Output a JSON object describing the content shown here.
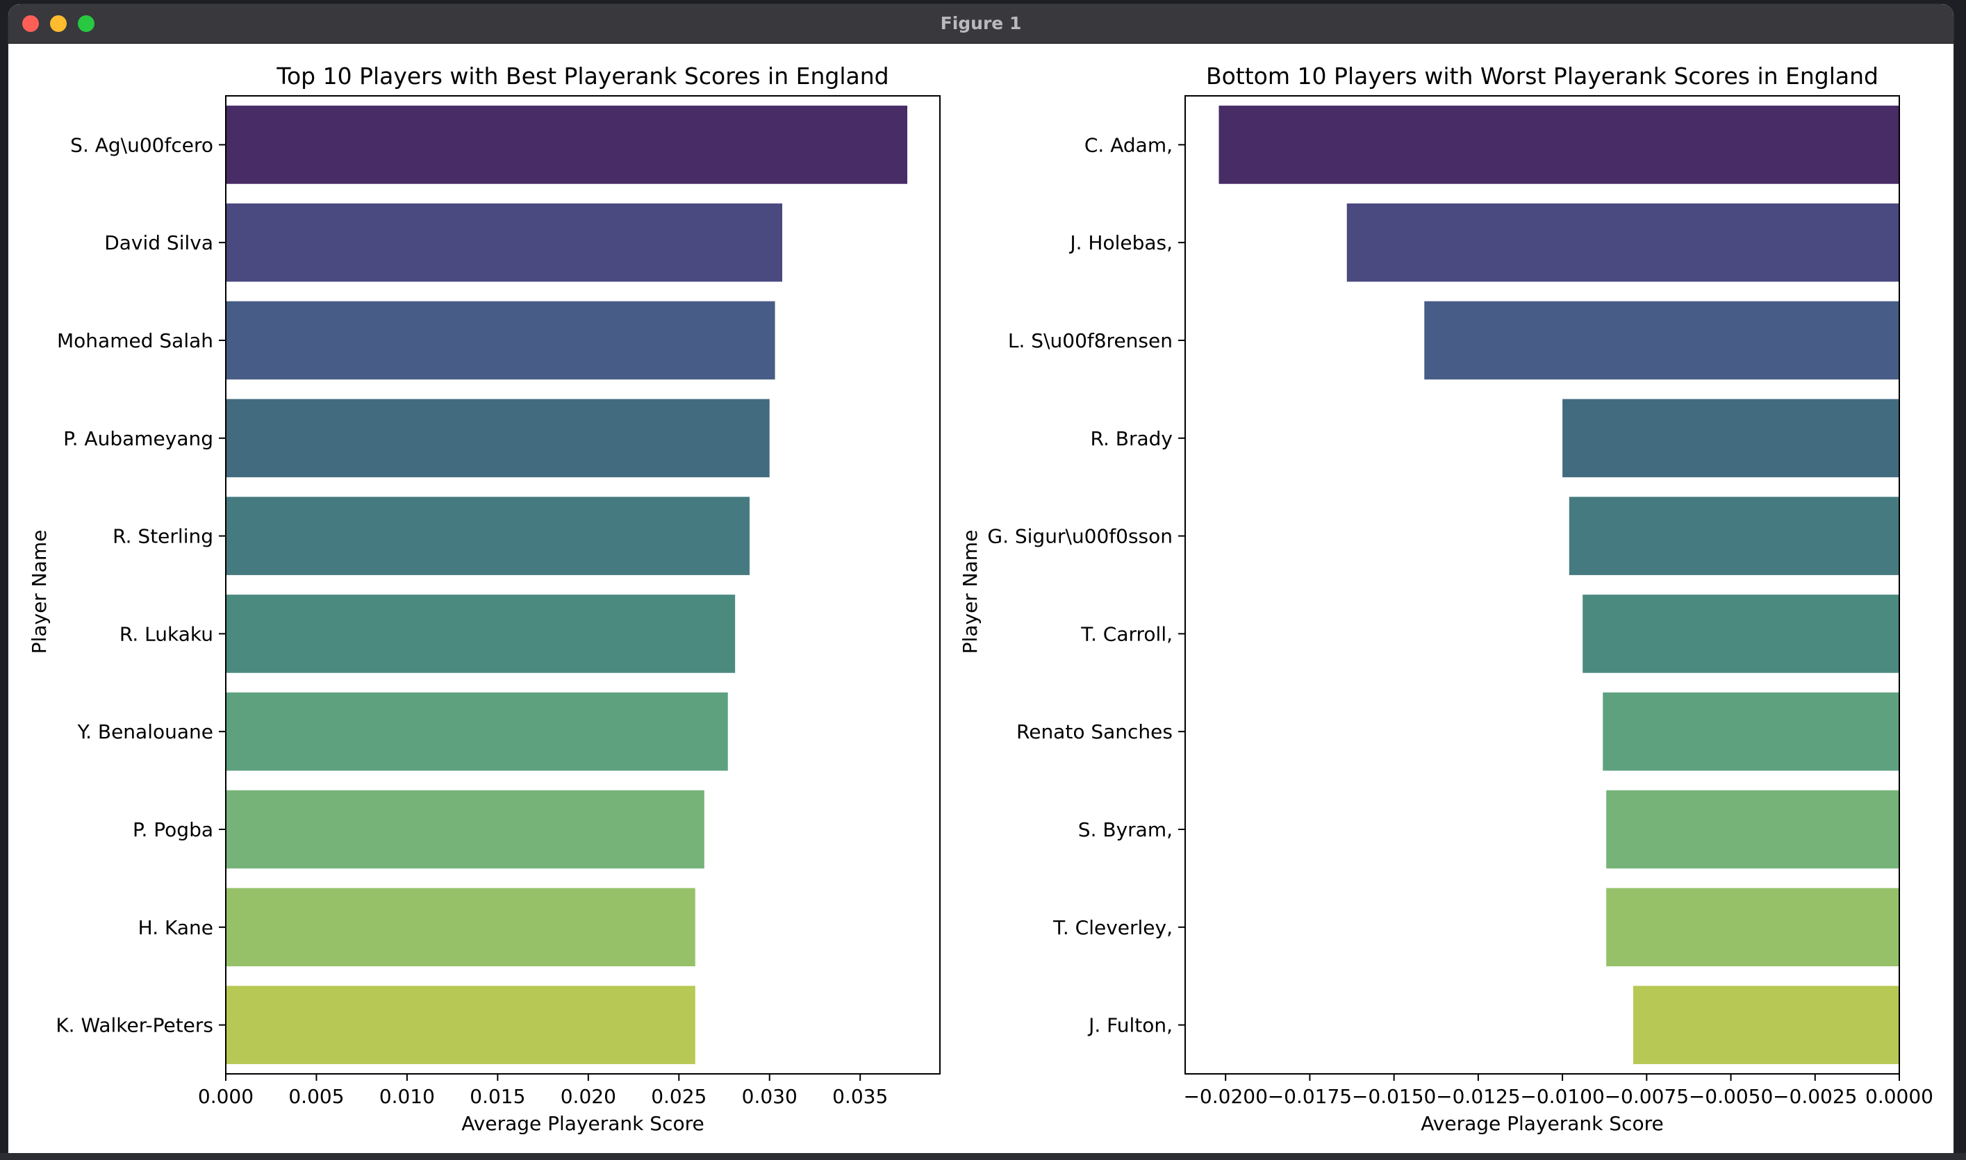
{
  "window": {
    "title": "Figure 1"
  },
  "chart_data": [
    {
      "type": "bar",
      "orientation": "horizontal",
      "title": "Top 10 Players with Best Playerank Scores in England",
      "xlabel": "Average Playerank Score",
      "ylabel": "Player Name",
      "categories": [
        "S. Ag\\u00fcero",
        "David Silva",
        "Mohamed Salah",
        "P. Aubameyang",
        "R. Sterling",
        "R. Lukaku",
        "Y. Benalouane",
        "P. Pogba",
        "H. Kane",
        "K. Walker-Peters"
      ],
      "values": [
        0.0376,
        0.0307,
        0.0303,
        0.03,
        0.0289,
        0.0281,
        0.0277,
        0.0264,
        0.0259,
        0.0259
      ],
      "xlim": [
        0,
        0.0394
      ],
      "xticks": [
        0,
        0.005,
        0.01,
        0.015,
        0.02,
        0.025,
        0.03,
        0.035
      ],
      "xtick_labels": [
        "0.000",
        "0.005",
        "0.010",
        "0.015",
        "0.020",
        "0.025",
        "0.030",
        "0.035"
      ],
      "colors": [
        "#472c66",
        "#4a4980",
        "#475c86",
        "#436b80",
        "#457b80",
        "#4b8a7f",
        "#5da17f",
        "#76b378",
        "#96c169",
        "#b8c854"
      ],
      "grid": false,
      "legend": "none"
    },
    {
      "type": "bar",
      "orientation": "horizontal",
      "title": "Bottom 10 Players with Worst Playerank Scores in England",
      "xlabel": "Average Playerank Score",
      "ylabel": "Player Name",
      "categories": [
        "C. Adam,",
        "J. Holebas,",
        "L. S\\u00f8rensen",
        "R. Brady",
        "G. Sigur\\u00f0sson",
        "T. Carroll,",
        "Renato Sanches",
        "S. Byram,",
        "T. Cleverley,",
        "J. Fulton,"
      ],
      "values": [
        -0.0202,
        -0.0164,
        -0.0141,
        -0.01,
        -0.0098,
        -0.0094,
        -0.0088,
        -0.0087,
        -0.0087,
        -0.0079
      ],
      "xlim": [
        -0.0212,
        0
      ],
      "xticks": [
        -0.02,
        -0.0175,
        -0.015,
        -0.0125,
        -0.01,
        -0.0075,
        -0.005,
        -0.0025,
        0
      ],
      "xtick_labels": [
        "−0.0200",
        "−0.0175",
        "−0.0150",
        "−0.0125",
        "−0.0100",
        "−0.0075",
        "−0.0050",
        "−0.0025",
        "0.0000"
      ],
      "colors": [
        "#472c66",
        "#4a4980",
        "#475c86",
        "#436b80",
        "#457b80",
        "#4b8a7f",
        "#5da17f",
        "#76b378",
        "#96c169",
        "#b8c854"
      ],
      "grid": false,
      "legend": "none"
    }
  ]
}
